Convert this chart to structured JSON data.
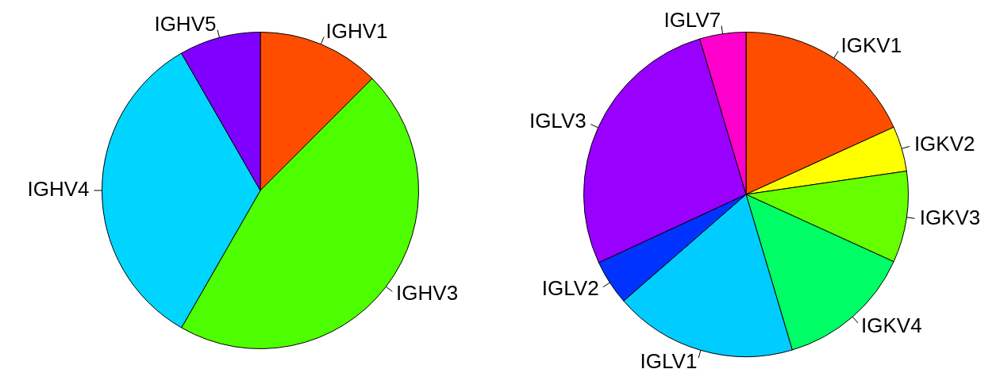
{
  "chart_data": [
    {
      "type": "pie",
      "categories": [
        "IGHV1",
        "IGHV3",
        "IGHV4",
        "IGHV5"
      ],
      "values": [
        12.5,
        45.8,
        33.4,
        8.3
      ],
      "colors": [
        "#ff4d00",
        "#4dff00",
        "#00d5ff",
        "#8000ff"
      ]
    },
    {
      "type": "pie",
      "categories": [
        "IGKV1",
        "IGKV2",
        "IGKV3",
        "IGKV4",
        "IGLV1",
        "IGLV2",
        "IGLV3",
        "IGLV7"
      ],
      "values": [
        18.2,
        4.5,
        9.1,
        13.6,
        18.2,
        4.5,
        27.3,
        4.6
      ],
      "colors": [
        "#ff4d00",
        "#ffff00",
        "#66ff00",
        "#00ff66",
        "#00ccff",
        "#0033ff",
        "#9900ff",
        "#ff00cc"
      ]
    }
  ]
}
